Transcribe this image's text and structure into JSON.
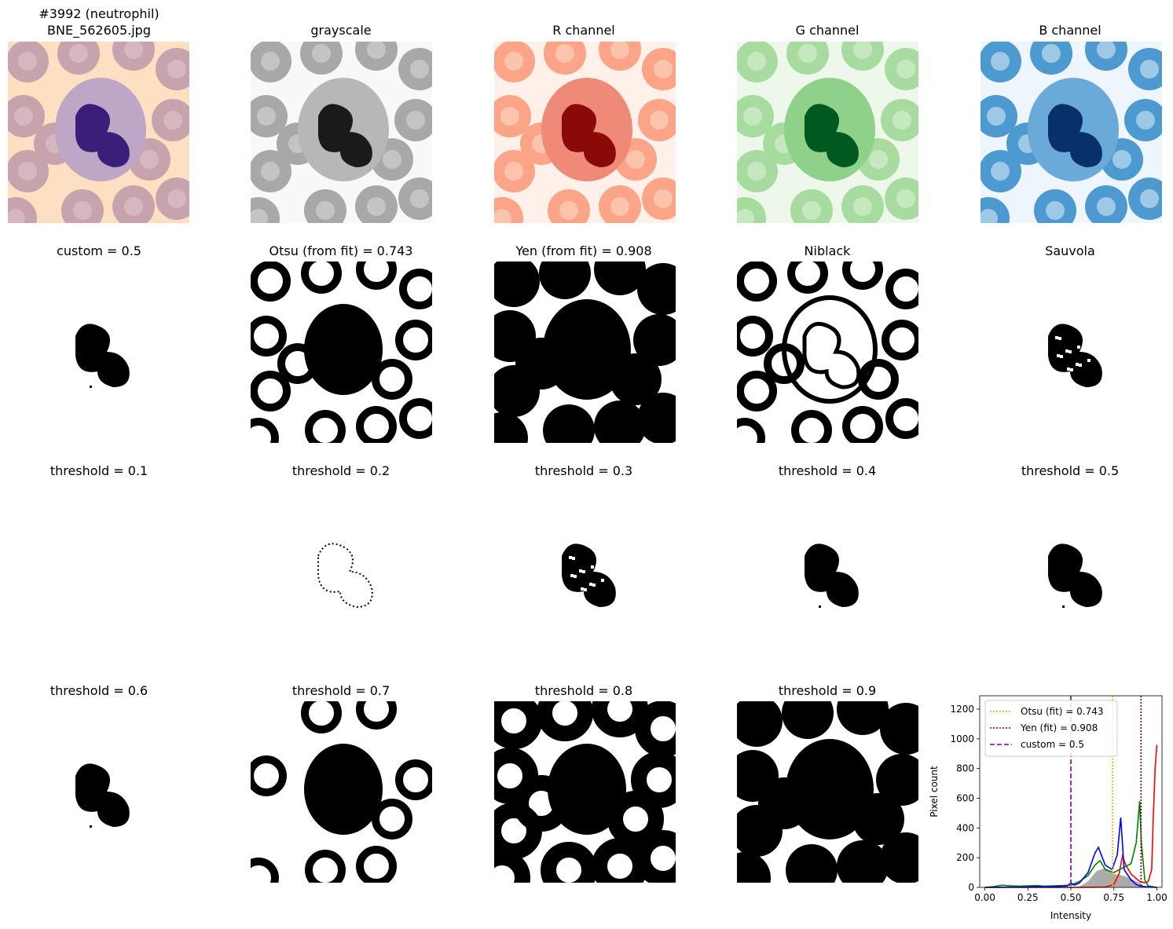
{
  "figure": {
    "title_line1": "#3992 (neutrophil)",
    "title_line2": "BNE_562605.jpg"
  },
  "row1": [
    {
      "title": "",
      "kind": "original"
    },
    {
      "title": "grayscale",
      "kind": "gray"
    },
    {
      "title": "R channel",
      "kind": "red"
    },
    {
      "title": "G channel",
      "kind": "green"
    },
    {
      "title": "B channel",
      "kind": "blue"
    }
  ],
  "row2": [
    {
      "title": "custom = 0.5",
      "kind": "nucleus"
    },
    {
      "title": "Otsu (from fit) = 0.743",
      "kind": "rings-nucleus"
    },
    {
      "title": "Yen (from fit) = 0.908",
      "kind": "solid"
    },
    {
      "title": "Niblack",
      "kind": "rings-ring"
    },
    {
      "title": "Sauvola",
      "kind": "nucleus-sparse"
    }
  ],
  "row3": [
    {
      "title": "threshold = 0.1",
      "kind": "blank"
    },
    {
      "title": "threshold = 0.2",
      "kind": "nucleus-outline"
    },
    {
      "title": "threshold = 0.3",
      "kind": "nucleus-sparse"
    },
    {
      "title": "threshold = 0.4",
      "kind": "nucleus"
    },
    {
      "title": "threshold = 0.5",
      "kind": "nucleus"
    }
  ],
  "row4": [
    {
      "title": "threshold = 0.6",
      "kind": "nucleus"
    },
    {
      "title": "threshold = 0.7",
      "kind": "rings-partial"
    },
    {
      "title": "threshold = 0.8",
      "kind": "rings-solid-center"
    },
    {
      "title": "threshold = 0.9",
      "kind": "solid"
    }
  ],
  "chart_data": {
    "type": "line",
    "xlabel": "Intensity",
    "ylabel": "Pixel count",
    "xlim": [
      -0.03,
      1.03
    ],
    "ylim": [
      0,
      1290
    ],
    "xticks": [
      "0.00",
      "0.25",
      "0.50",
      "0.75",
      "1.00"
    ],
    "yticks": [
      "0",
      "200",
      "400",
      "600",
      "800",
      "1000",
      "1200"
    ],
    "legend_position": "upper-left",
    "series": [
      {
        "name": "Otsu (fit) = 0.743",
        "kind": "vline",
        "x": 0.743,
        "color": "#ffa500",
        "style": "dotted"
      },
      {
        "name": "Yen (fit) = 0.908",
        "kind": "vline",
        "x": 0.908,
        "color": "#800000",
        "style": "dotted"
      },
      {
        "name": "custom = 0.5",
        "kind": "vline",
        "x": 0.5,
        "color": "#800080",
        "style": "dashed"
      },
      {
        "kind": "curve",
        "color": "#ff0000",
        "x": [
          0,
          0.5,
          0.7,
          0.75,
          0.78,
          0.8,
          0.82,
          0.85,
          0.88,
          0.9,
          0.93,
          0.95,
          0.97,
          0.98,
          0.99,
          1.0
        ],
        "y": [
          0,
          0,
          2,
          20,
          90,
          210,
          150,
          90,
          60,
          40,
          30,
          40,
          120,
          500,
          800,
          960
        ]
      },
      {
        "kind": "curve",
        "color": "#008000",
        "x": [
          0,
          0.05,
          0.1,
          0.15,
          0.2,
          0.25,
          0.3,
          0.35,
          0.4,
          0.45,
          0.5,
          0.55,
          0.6,
          0.64,
          0.67,
          0.7,
          0.75,
          0.8,
          0.85,
          0.88,
          0.9,
          0.91,
          0.93,
          0.95,
          1.0
        ],
        "y": [
          0,
          5,
          15,
          10,
          8,
          10,
          12,
          8,
          10,
          12,
          15,
          40,
          80,
          150,
          180,
          120,
          100,
          130,
          160,
          300,
          580,
          300,
          50,
          10,
          0
        ]
      },
      {
        "kind": "curve",
        "color": "#0000ff",
        "x": [
          0,
          0.2,
          0.3,
          0.4,
          0.48,
          0.5,
          0.52,
          0.55,
          0.6,
          0.64,
          0.66,
          0.7,
          0.74,
          0.77,
          0.79,
          0.81,
          0.85,
          0.88,
          0.9,
          0.93,
          1.0
        ],
        "y": [
          0,
          2,
          5,
          5,
          10,
          30,
          15,
          30,
          100,
          230,
          270,
          150,
          120,
          220,
          470,
          120,
          50,
          20,
          10,
          5,
          0
        ]
      },
      {
        "kind": "area",
        "color": "#888888",
        "x": [
          0.55,
          0.6,
          0.65,
          0.7,
          0.75,
          0.8,
          0.85,
          0.88,
          0.9,
          0.93
        ],
        "y": [
          5,
          40,
          110,
          130,
          90,
          80,
          60,
          40,
          30,
          5
        ]
      }
    ]
  }
}
